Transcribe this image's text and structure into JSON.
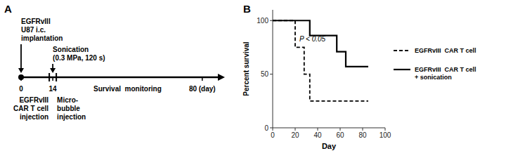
{
  "chart_data": [
    {
      "type": "timeline",
      "title": "A",
      "xlim": [
        0,
        90
      ],
      "xticks": [
        0,
        14,
        {
          "value": 80,
          "label": "80 (day)"
        }
      ],
      "events": [
        {
          "x": 0,
          "label": "EGFRvIII\nU87 i.c.\nimplantation",
          "marker": "arrow"
        },
        {
          "x": 14,
          "label": "Sonication\n(0.3 MPa, 120 s)",
          "marker": "arrow"
        },
        {
          "x": 14,
          "label": "EGFRvIII\nCAR T cell\ninjection",
          "marker": "tick"
        },
        {
          "x": 14,
          "label": "Micro-\nbubble\ninjection",
          "marker": "tick"
        }
      ],
      "annotations": [
        {
          "text": "Survival  monitoring"
        }
      ]
    },
    {
      "type": "line",
      "title": "B",
      "xlabel": "Day",
      "ylabel": "Percent survival",
      "xlim": [
        0,
        100
      ],
      "ylim": [
        0,
        110
      ],
      "xticks": [
        0,
        20,
        40,
        60,
        80,
        100
      ],
      "yticks": [
        0,
        50,
        100
      ],
      "grid": false,
      "legend": "right",
      "series": [
        {
          "name": "EGFRvIII  CAR T cell",
          "color": "#000000",
          "line_style": "dashed",
          "x": [
            0,
            20,
            20,
            28,
            28,
            33,
            33,
            38,
            38,
            85
          ],
          "values": [
            100,
            100,
            75,
            75,
            50,
            50,
            25,
            25,
            25,
            25
          ]
        },
        {
          "name": "EGFRvIII  CAR T cell\n+ sonication",
          "color": "#000000",
          "line_style": "solid",
          "x": [
            0,
            33,
            33,
            57,
            57,
            65,
            65,
            78,
            78,
            85
          ],
          "values": [
            100,
            100,
            86,
            86,
            71,
            71,
            57,
            57,
            57,
            57
          ]
        }
      ],
      "annotations": [
        {
          "text": "P < 0.05",
          "x": 47,
          "y": 83
        }
      ]
    }
  ]
}
